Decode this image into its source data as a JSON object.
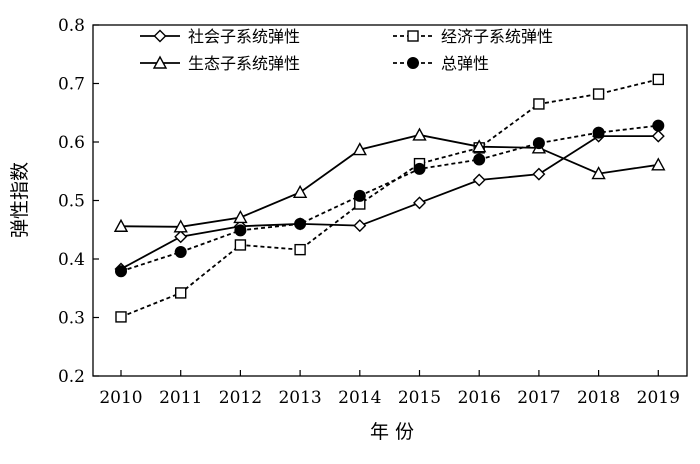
{
  "chart_data": {
    "type": "line",
    "title": "",
    "xlabel": "年 份",
    "ylabel": "弹性指数",
    "x": [
      2010,
      2011,
      2012,
      2013,
      2014,
      2015,
      2016,
      2017,
      2018,
      2019
    ],
    "xlim": [
      2009.5,
      2019.5
    ],
    "ylim": [
      0.2,
      0.8
    ],
    "yticks": [
      "0.2",
      "0.3",
      "0.4",
      "0.5",
      "0.6",
      "0.7",
      "0.8"
    ],
    "grid": false,
    "legend_position": "top",
    "series": [
      {
        "name": "社会子系统弹性",
        "marker": "diamond-open",
        "line": "solid",
        "values": [
          0.383,
          0.438,
          0.456,
          0.46,
          0.457,
          0.496,
          0.535,
          0.545,
          0.61,
          0.61
        ]
      },
      {
        "name": "经济子系统弹性",
        "marker": "square-open",
        "line": "dashed",
        "values": [
          0.301,
          0.342,
          0.424,
          0.416,
          0.494,
          0.563,
          0.59,
          0.665,
          0.682,
          0.707
        ]
      },
      {
        "name": "生态子系统弹性",
        "marker": "triangle-open",
        "line": "solid",
        "values": [
          0.456,
          0.455,
          0.471,
          0.514,
          0.587,
          0.612,
          0.592,
          0.59,
          0.546,
          0.561
        ]
      },
      {
        "name": "总弹性",
        "marker": "circle-filled",
        "line": "dashed",
        "values": [
          0.379,
          0.412,
          0.449,
          0.46,
          0.508,
          0.554,
          0.57,
          0.598,
          0.616,
          0.628
        ]
      }
    ]
  }
}
